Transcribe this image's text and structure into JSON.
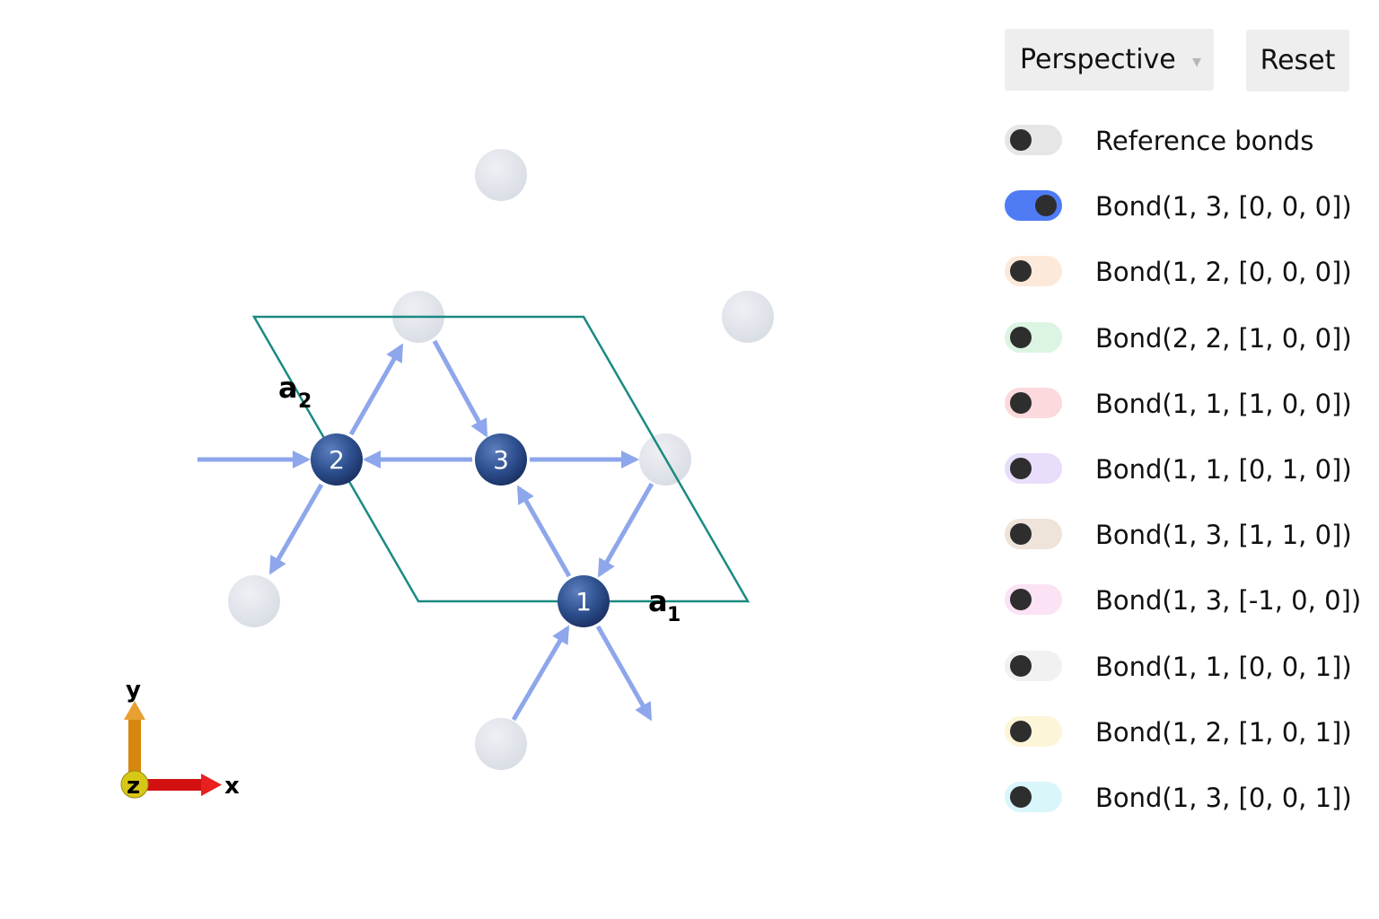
{
  "controls": {
    "projection": {
      "selected": "Perspective",
      "caret": "▾"
    },
    "reset_label": "Reset"
  },
  "toggles": [
    {
      "label": "Reference bonds",
      "on": false,
      "color": "#e6e6e6"
    },
    {
      "label": "Bond(1, 3, [0, 0, 0])",
      "on": true,
      "color": "#4f7cf5"
    },
    {
      "label": "Bond(1, 2, [0, 0, 0])",
      "on": false,
      "color": "#fde9d9"
    },
    {
      "label": "Bond(2, 2, [1, 0, 0])",
      "on": false,
      "color": "#dcf5e2"
    },
    {
      "label": "Bond(1, 1, [1, 0, 0])",
      "on": false,
      "color": "#fbd9dc"
    },
    {
      "label": "Bond(1, 1, [0, 1, 0])",
      "on": false,
      "color": "#e8defb"
    },
    {
      "label": "Bond(1, 3, [1, 1, 0])",
      "on": false,
      "color": "#efe4da"
    },
    {
      "label": "Bond(1, 3, [-1, 0, 0])",
      "on": false,
      "color": "#fbe2f4"
    },
    {
      "label": "Bond(1, 1, [0, 0, 1])",
      "on": false,
      "color": "#f1f1f1"
    },
    {
      "label": "Bond(1, 2, [1, 0, 1])",
      "on": false,
      "color": "#fdf5d8"
    },
    {
      "label": "Bond(1, 3, [0, 0, 1])",
      "on": false,
      "color": "#d9f6fb"
    }
  ],
  "scene": {
    "atoms": [
      "1",
      "2",
      "3"
    ],
    "lattice_vectors": [
      {
        "base": "a",
        "sub": "1"
      },
      {
        "base": "a",
        "sub": "2"
      }
    ],
    "axes": {
      "x": "x",
      "y": "y",
      "z": "z"
    },
    "colors": {
      "atom": "#2d4f8e",
      "ghost_atom": "#dde1e8",
      "bond_arrow": "#8da6ec",
      "cell_edge": "#1a8a80",
      "axis_x": "#e01010",
      "axis_y": "#e08a10",
      "axis_z": "#e0d020"
    }
  }
}
